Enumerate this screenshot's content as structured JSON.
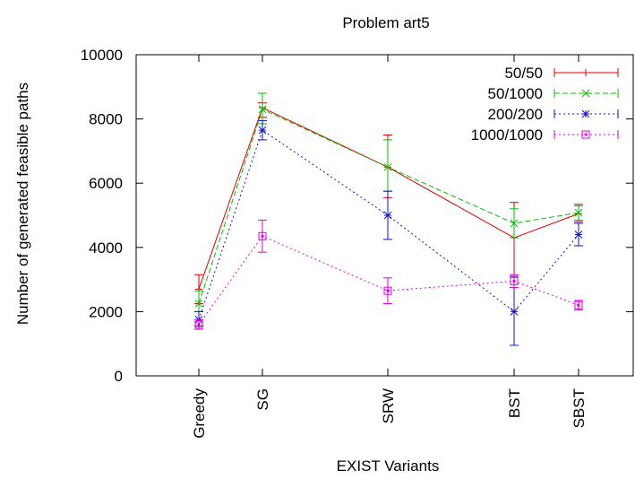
{
  "chart_data": {
    "type": "line",
    "title": "Problem art5",
    "xlabel": "EXIST Variants",
    "ylabel": "Number of generated feasible paths",
    "categories": [
      "Greedy",
      "SG",
      "SRW",
      "BST",
      "SBST"
    ],
    "ylim": [
      0,
      10000
    ],
    "yticks": [
      0,
      2000,
      4000,
      6000,
      8000,
      10000
    ],
    "grid": false,
    "legend_position": "top-right",
    "series": [
      {
        "name": "50/50",
        "color": "#e00000",
        "marker": "plus",
        "dash": "solid",
        "values": [
          2700,
          8350,
          6500,
          4300,
          5050
        ],
        "errors": [
          [
            2250,
            3150
          ],
          [
            8050,
            8500
          ],
          [
            5550,
            7500
          ],
          [
            3100,
            5400
          ],
          [
            4800,
            5300
          ]
        ]
      },
      {
        "name": "50/1000",
        "color": "#00c000",
        "marker": "x",
        "dash": "dashed",
        "values": [
          2250,
          8300,
          6500,
          4750,
          5080
        ],
        "errors": [
          [
            2000,
            2650
          ],
          [
            7850,
            8800
          ],
          [
            5750,
            7350
          ],
          [
            4300,
            5200
          ],
          [
            4850,
            5350
          ]
        ]
      },
      {
        "name": "200/200",
        "color": "#1010d0",
        "marker": "star",
        "dash": "dotted",
        "values": [
          1750,
          7650,
          5000,
          2000,
          4400
        ],
        "errors": [
          [
            1550,
            2000
          ],
          [
            7350,
            7950
          ],
          [
            4250,
            5750
          ],
          [
            950,
            3100
          ],
          [
            4050,
            4750
          ]
        ]
      },
      {
        "name": "1000/1000",
        "color": "#e000e0",
        "marker": "square",
        "dash": "dotted",
        "values": [
          1600,
          4350,
          2650,
          2950,
          2200
        ],
        "errors": [
          [
            1450,
            1750
          ],
          [
            3850,
            4850
          ],
          [
            2250,
            3050
          ],
          [
            2750,
            3150
          ],
          [
            2050,
            2350
          ]
        ]
      }
    ]
  }
}
